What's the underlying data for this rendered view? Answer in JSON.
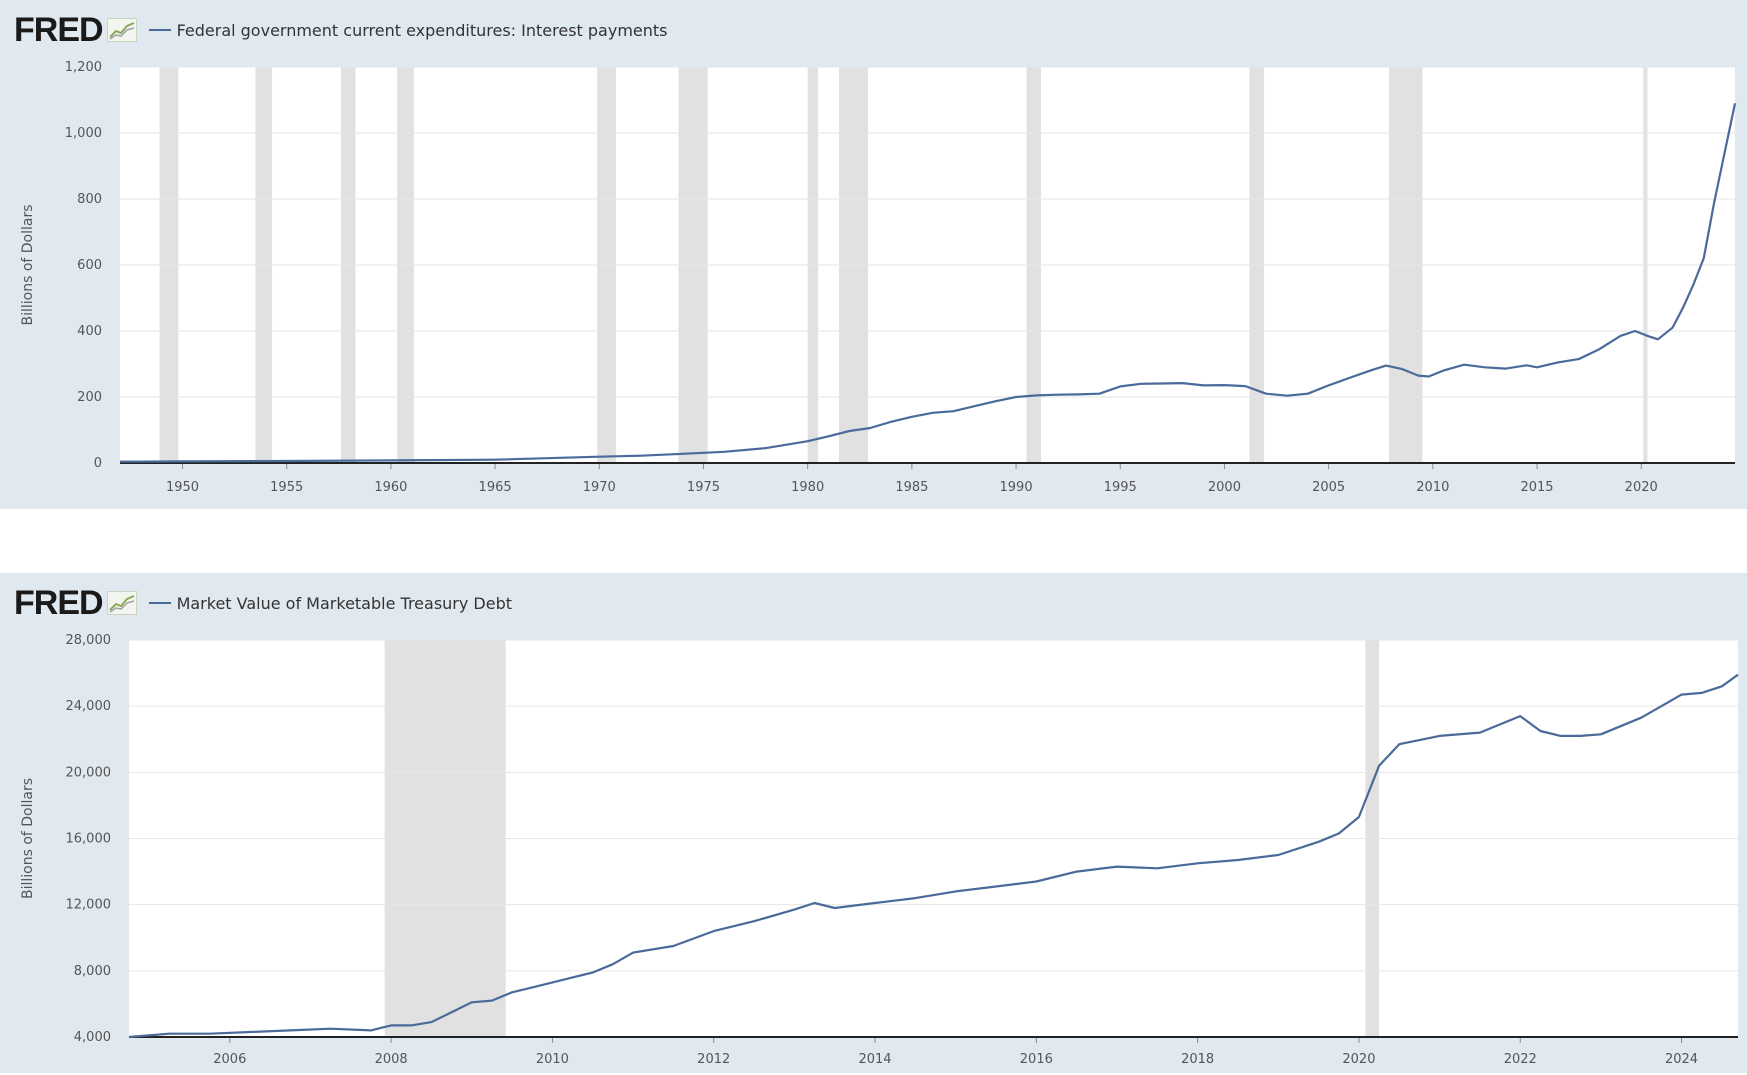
{
  "brand": {
    "logo_text": "FRED",
    "logo_icon": "fred-line-chart-icon"
  },
  "colors": {
    "panel_bg": "#e1e9f0",
    "plot_bg": "#ffffff",
    "series": "#4a6a9a",
    "recession": "#e1e1e1",
    "grid": "#e6e6e6"
  },
  "chart_data": [
    {
      "type": "line",
      "title": "Federal government current expenditures: Interest payments",
      "series_name": "Federal government current expenditures: Interest payments",
      "ylabel": "Billions of Dollars",
      "xlim": [
        1947,
        2024.5
      ],
      "ylim": [
        0,
        1200
      ],
      "x_ticks": [
        1950,
        1955,
        1960,
        1965,
        1970,
        1975,
        1980,
        1985,
        1990,
        1995,
        2000,
        2005,
        2010,
        2015,
        2020
      ],
      "x_tick_labels": [
        "1950",
        "1955",
        "1960",
        "1965",
        "1970",
        "1975",
        "1980",
        "1985",
        "1990",
        "1995",
        "2000",
        "2005",
        "2010",
        "2015",
        "2020"
      ],
      "y_ticks": [
        0,
        200,
        400,
        600,
        800,
        1000,
        1200
      ],
      "y_tick_labels": [
        "0",
        "200",
        "400",
        "600",
        "800",
        "1,000",
        "1,200"
      ],
      "grid": true,
      "recessions": [
        [
          1948.9,
          1949.8
        ],
        [
          1953.5,
          1954.3
        ],
        [
          1957.6,
          1958.3
        ],
        [
          1960.3,
          1961.1
        ],
        [
          1969.9,
          1970.8
        ],
        [
          1973.8,
          1975.2
        ],
        [
          1980.0,
          1980.5
        ],
        [
          1981.5,
          1982.9
        ],
        [
          1990.5,
          1991.2
        ],
        [
          2001.2,
          2001.9
        ],
        [
          2007.9,
          2009.5
        ],
        [
          2020.1,
          2020.3
        ]
      ],
      "x": [
        1947,
        1950,
        1955,
        1960,
        1965,
        1970,
        1972,
        1974,
        1976,
        1978,
        1980,
        1981,
        1982,
        1983,
        1984,
        1985,
        1986,
        1987,
        1988,
        1989,
        1990,
        1991,
        1992,
        1993,
        1994,
        1995,
        1996,
        1997,
        1998,
        1999,
        2000,
        2001,
        2002,
        2003,
        2004,
        2005,
        2006,
        2007,
        2007.75,
        2008.5,
        2009.3,
        2009.8,
        2010.5,
        2011.5,
        2012.5,
        2013.5,
        2014.5,
        2015,
        2016,
        2017,
        2018,
        2019,
        2019.7,
        2020.3,
        2020.8,
        2021.5,
        2022,
        2022.5,
        2023,
        2023.5,
        2024,
        2024.5
      ],
      "values": [
        4,
        5,
        6,
        8,
        10,
        19,
        22,
        28,
        34,
        45,
        66,
        81,
        97,
        106,
        125,
        140,
        152,
        157,
        172,
        187,
        200,
        205,
        207,
        208,
        210,
        232,
        240,
        241,
        242,
        235,
        236,
        233,
        210,
        204,
        210,
        235,
        258,
        280,
        295,
        285,
        265,
        262,
        280,
        298,
        290,
        286,
        296,
        290,
        305,
        315,
        345,
        385,
        400,
        385,
        375,
        410,
        470,
        540,
        620,
        790,
        940,
        1090
      ]
    },
    {
      "type": "line",
      "title": "Market Value of Marketable Treasury Debt",
      "series_name": "Market Value of Marketable Treasury Debt",
      "ylabel": "Billions of Dollars",
      "xlim": [
        2004.75,
        2024.7
      ],
      "ylim": [
        4000,
        28000
      ],
      "x_ticks": [
        2006,
        2008,
        2010,
        2012,
        2014,
        2016,
        2018,
        2020,
        2022,
        2024
      ],
      "x_tick_labels": [
        "2006",
        "2008",
        "2010",
        "2012",
        "2014",
        "2016",
        "2018",
        "2020",
        "2022",
        "2024"
      ],
      "y_ticks": [
        4000,
        8000,
        12000,
        16000,
        20000,
        24000,
        28000
      ],
      "y_tick_labels": [
        "4,000",
        "8,000",
        "12,000",
        "16,000",
        "20,000",
        "24,000",
        "28,000"
      ],
      "grid": true,
      "recessions": [
        [
          2007.92,
          2009.42
        ],
        [
          2020.08,
          2020.25
        ]
      ],
      "x": [
        2004.75,
        2005.25,
        2005.75,
        2006.25,
        2006.75,
        2007.25,
        2007.75,
        2008,
        2008.25,
        2008.5,
        2008.75,
        2009,
        2009.25,
        2009.5,
        2009.75,
        2010,
        2010.25,
        2010.5,
        2010.75,
        2011,
        2011.5,
        2012,
        2012.5,
        2013,
        2013.25,
        2013.5,
        2014,
        2014.5,
        2015,
        2015.5,
        2016,
        2016.5,
        2017,
        2017.5,
        2018,
        2018.5,
        2019,
        2019.5,
        2019.75,
        2020,
        2020.25,
        2020.5,
        2021,
        2021.5,
        2022,
        2022.25,
        2022.5,
        2022.75,
        2023,
        2023.5,
        2024,
        2024.25,
        2024.5,
        2024.7
      ],
      "values": [
        4000,
        4200,
        4200,
        4300,
        4400,
        4500,
        4400,
        4700,
        4700,
        4900,
        5500,
        6100,
        6200,
        6700,
        7000,
        7300,
        7600,
        7900,
        8400,
        9100,
        9500,
        10400,
        11000,
        11700,
        12100,
        11800,
        12100,
        12400,
        12800,
        13100,
        13400,
        14000,
        14300,
        14200,
        14500,
        14700,
        15000,
        15800,
        16300,
        17300,
        20400,
        21700,
        22200,
        22400,
        23400,
        22500,
        22200,
        22200,
        22300,
        23300,
        24700,
        24800,
        25200,
        25900
      ]
    }
  ]
}
